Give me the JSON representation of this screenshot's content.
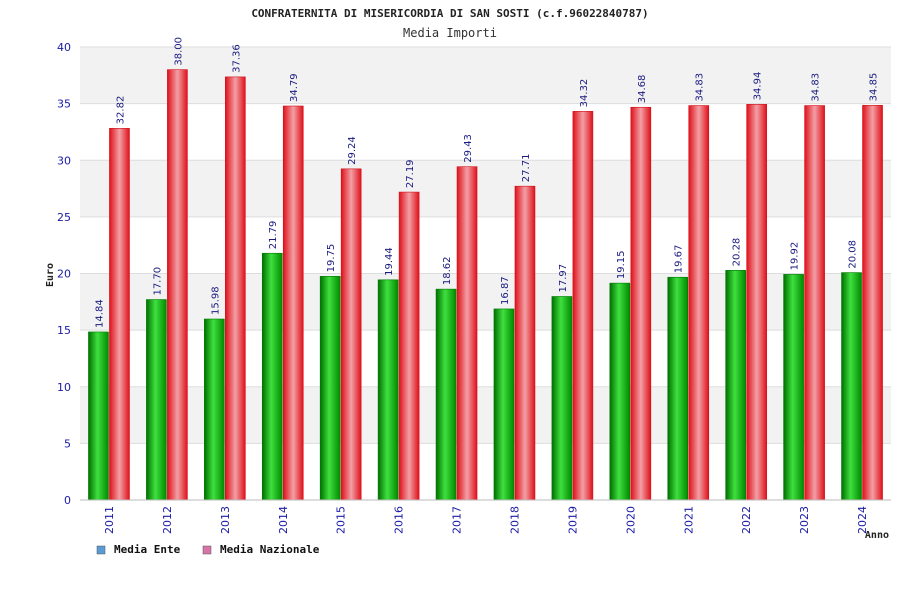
{
  "chart_data": {
    "type": "bar",
    "title": "CONFRATERNITA DI MISERICORDIA DI SAN SOSTI (c.f.96022840787)",
    "subtitle": "Media Importi",
    "xlabel": "Anno",
    "ylabel": "Euro",
    "ylim": [
      0,
      40
    ],
    "yticks": [
      0,
      5,
      10,
      15,
      20,
      25,
      30,
      35,
      40
    ],
    "categories": [
      "2011",
      "2012",
      "2013",
      "2014",
      "2015",
      "2016",
      "2017",
      "2018",
      "2019",
      "2020",
      "2021",
      "2022",
      "2023",
      "2024"
    ],
    "series": [
      {
        "name": "Media Ente",
        "color": "#00b000",
        "legend_color": "#5b9bd5",
        "values": [
          14.84,
          17.7,
          15.98,
          21.79,
          19.75,
          19.44,
          18.62,
          16.87,
          17.97,
          19.15,
          19.67,
          20.28,
          19.92,
          20.08
        ],
        "labels": [
          "14.84",
          "17.70",
          "15.98",
          "21.79",
          "19.75",
          "19.44",
          "18.62",
          "16.87",
          "17.97",
          "19.15",
          "19.67",
          "20.28",
          "19.92",
          "20.08"
        ]
      },
      {
        "name": "Media Nazionale",
        "color": "#ee1c24",
        "legend_color": "#d874a8",
        "values": [
          32.82,
          38.0,
          37.36,
          34.79,
          29.24,
          27.19,
          29.43,
          27.71,
          34.32,
          34.68,
          34.83,
          34.94,
          34.83,
          34.85
        ],
        "labels": [
          "32.82",
          "38.00",
          "37.36",
          "34.79",
          "29.24",
          "27.19",
          "29.43",
          "27.71",
          "34.32",
          "34.68",
          "34.83",
          "34.94",
          "34.83",
          "34.85"
        ]
      }
    ],
    "legend_position": "bottom-left",
    "grid": true
  }
}
